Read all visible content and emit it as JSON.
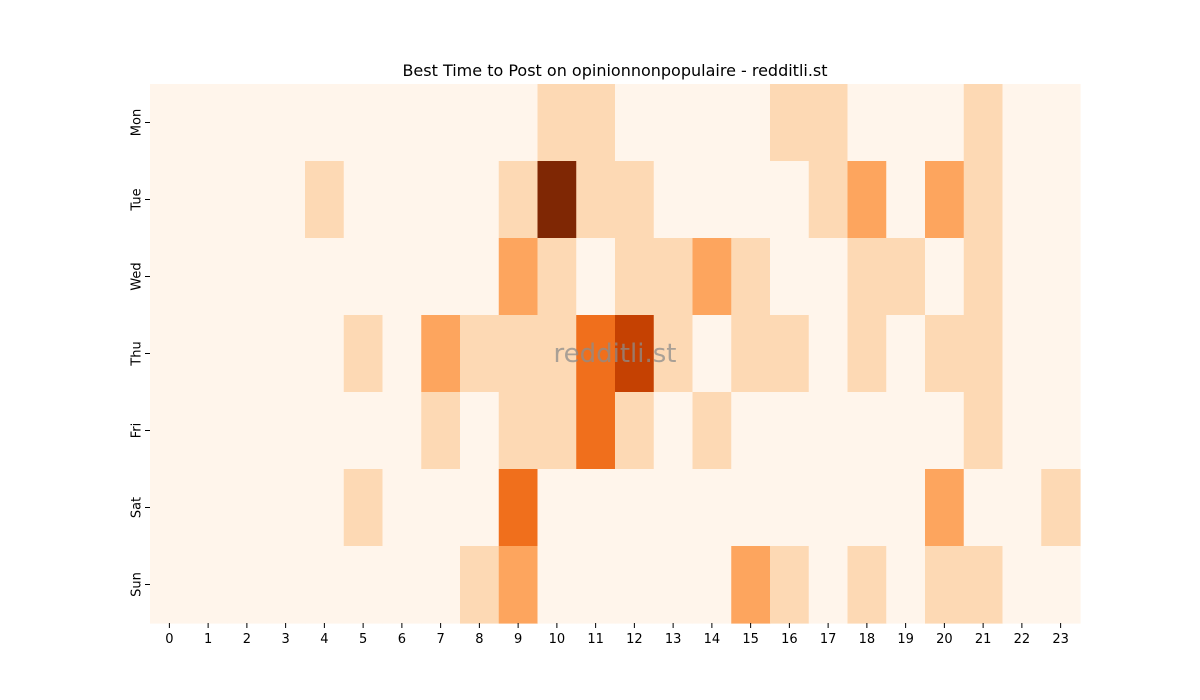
{
  "chart_data": {
    "type": "heatmap",
    "title": "Best Time to Post on opinionnonpopulaire - redditli.st",
    "watermark": "redditli.st",
    "xlabel": "",
    "ylabel": "",
    "x_categories": [
      "0",
      "1",
      "2",
      "3",
      "4",
      "5",
      "6",
      "7",
      "8",
      "9",
      "10",
      "11",
      "12",
      "13",
      "14",
      "15",
      "16",
      "17",
      "18",
      "19",
      "20",
      "21",
      "22",
      "23"
    ],
    "y_categories": [
      "Mon",
      "Tue",
      "Wed",
      "Thu",
      "Fri",
      "Sat",
      "Sun"
    ],
    "colormap": "Oranges",
    "colormap_stops": [
      "#fff5eb",
      "#fdd9b4",
      "#fda55e",
      "#f06f1c",
      "#c54102",
      "#7f2704"
    ],
    "value_range": [
      0,
      5
    ],
    "grid": false,
    "legend": "none",
    "values": [
      [
        0,
        0,
        0,
        0,
        0,
        0,
        0,
        0,
        0,
        0,
        1,
        1,
        0,
        0,
        0,
        0,
        1,
        1,
        0,
        0,
        0,
        1,
        0,
        0
      ],
      [
        0,
        0,
        0,
        0,
        1,
        0,
        0,
        0,
        0,
        1,
        5,
        1,
        1,
        0,
        0,
        0,
        0,
        1,
        2,
        0,
        2,
        1,
        0,
        0
      ],
      [
        0,
        0,
        0,
        0,
        0,
        0,
        0,
        0,
        0,
        2,
        1,
        0,
        1,
        1,
        2,
        1,
        0,
        0,
        1,
        1,
        0,
        1,
        0,
        0
      ],
      [
        0,
        0,
        0,
        0,
        0,
        1,
        0,
        2,
        1,
        1,
        1,
        3,
        4,
        1,
        0,
        1,
        1,
        0,
        1,
        0,
        1,
        1,
        0,
        0
      ],
      [
        0,
        0,
        0,
        0,
        0,
        0,
        0,
        1,
        0,
        1,
        1,
        3,
        1,
        0,
        1,
        0,
        0,
        0,
        0,
        0,
        0,
        1,
        0,
        0
      ],
      [
        0,
        0,
        0,
        0,
        0,
        1,
        0,
        0,
        0,
        3,
        0,
        0,
        0,
        0,
        0,
        0,
        0,
        0,
        0,
        0,
        2,
        0,
        0,
        1
      ],
      [
        0,
        0,
        0,
        0,
        0,
        0,
        0,
        0,
        1,
        2,
        0,
        0,
        0,
        0,
        0,
        2,
        1,
        0,
        1,
        0,
        1,
        1,
        0,
        0
      ]
    ]
  }
}
